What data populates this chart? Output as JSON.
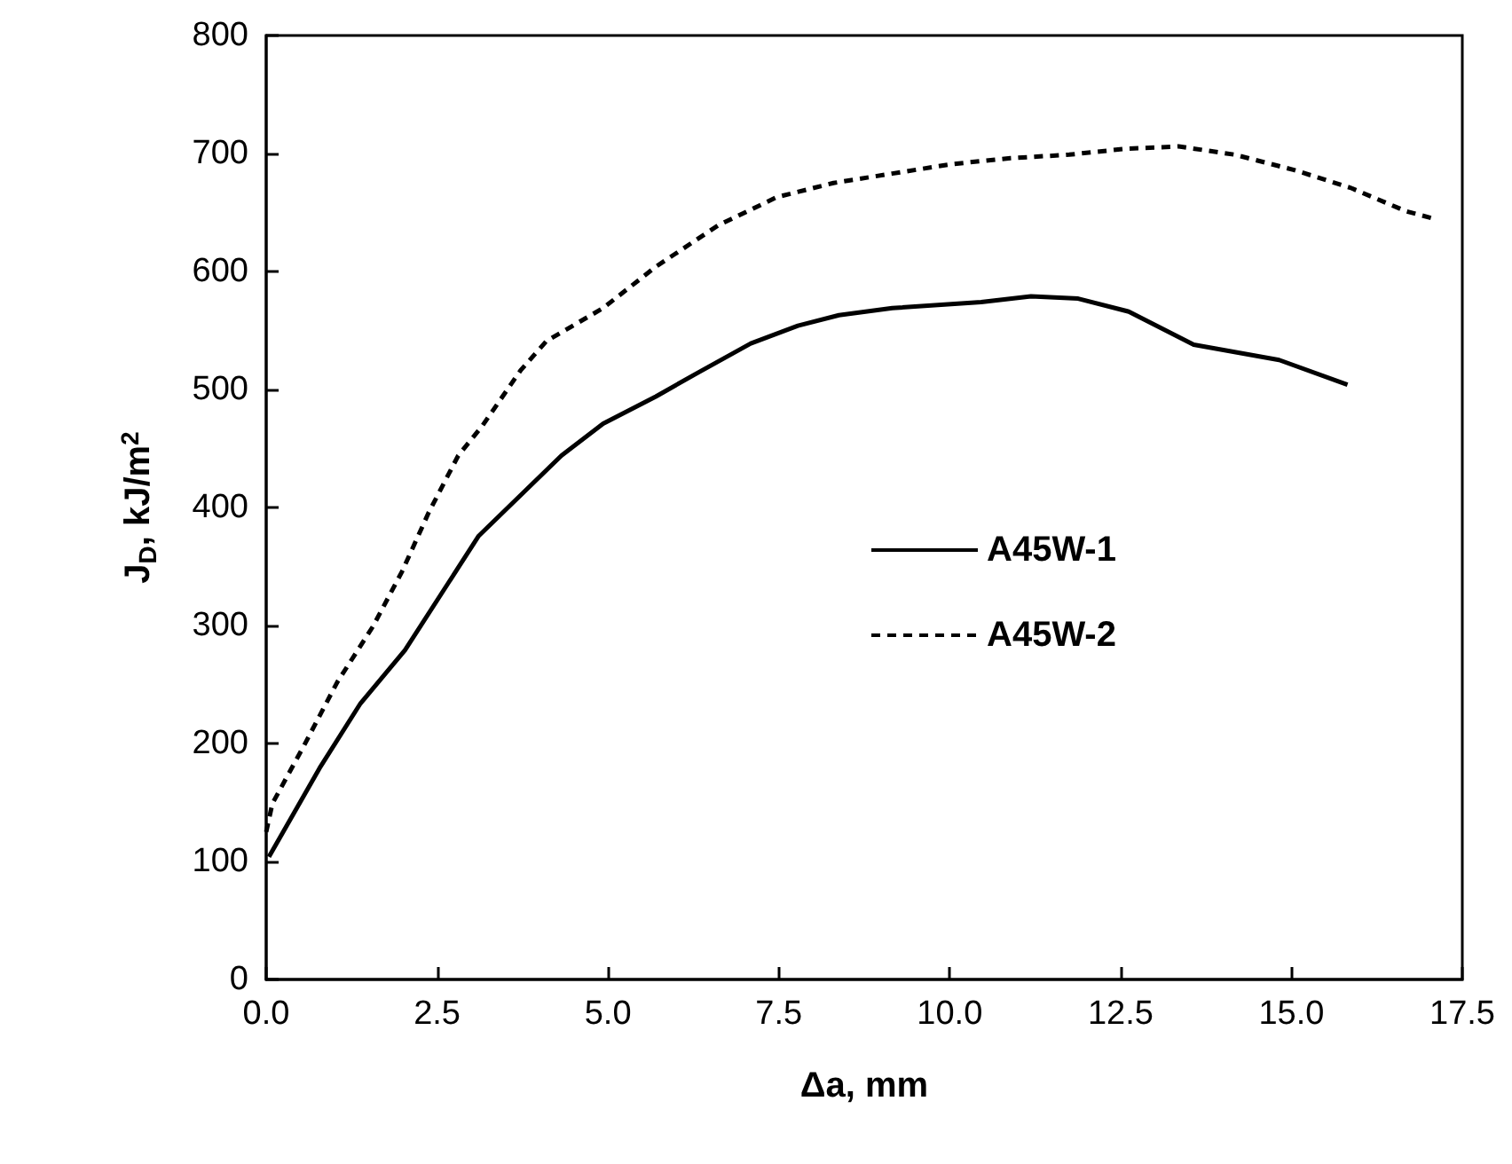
{
  "chart_data": {
    "type": "line",
    "xlabel": "Δa, mm",
    "ylabel": "J$_{D}$, kJ/m$^{2}$",
    "xlim": [
      0,
      17.5
    ],
    "ylim": [
      0,
      800
    ],
    "xticks": [
      {
        "value": 0,
        "label": "0.0"
      },
      {
        "value": 2.5,
        "label": "2.5"
      },
      {
        "value": 5,
        "label": "5.0"
      },
      {
        "value": 7.5,
        "label": "7.5"
      },
      {
        "value": 10,
        "label": "10.0"
      },
      {
        "value": 12.5,
        "label": "12.5"
      },
      {
        "value": 15,
        "label": "15.0"
      },
      {
        "value": 17.5,
        "label": "17.5"
      }
    ],
    "yticks": [
      0,
      100,
      200,
      300,
      400,
      500,
      600,
      700,
      800
    ],
    "grid": false,
    "legend": "center",
    "marker": "none",
    "series": [
      {
        "name": "A45W-1",
        "color": "#000000",
        "line_style": "solid",
        "x": [
          0.04,
          0.78,
          1.38,
          2.03,
          3.11,
          4.32,
          4.93,
          5.7,
          6.31,
          7.09,
          7.78,
          8.38,
          9.16,
          10.46,
          11.19,
          11.88,
          12.62,
          13.57,
          14.82,
          15.82
        ],
        "values": [
          104,
          179,
          234,
          279,
          376,
          444,
          471,
          494,
          514,
          539,
          554,
          563,
          569,
          574,
          579,
          577,
          566,
          538,
          525,
          504
        ]
      },
      {
        "name": "A45W-2",
        "color": "#000000",
        "line_style": "dashed",
        "x": [
          0.0,
          0.09,
          0.56,
          1.04,
          1.56,
          1.99,
          2.38,
          2.81,
          3.16,
          3.72,
          4.1,
          4.93,
          5.7,
          6.61,
          7.47,
          8.3,
          9.16,
          10.03,
          10.89,
          11.75,
          12.57,
          13.35,
          14.17,
          15.04,
          15.86,
          16.68,
          17.07
        ],
        "values": [
          125,
          149,
          199,
          252,
          299,
          346,
          396,
          444,
          469,
          516,
          541,
          569,
          604,
          639,
          663,
          675,
          683,
          691,
          696,
          699,
          704,
          706,
          699,
          686,
          671,
          651,
          645
        ]
      }
    ]
  }
}
